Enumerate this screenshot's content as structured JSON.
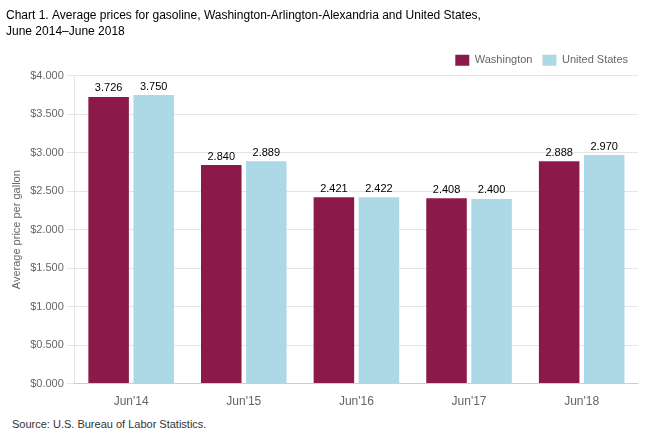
{
  "chart_data": {
    "type": "bar",
    "title": "Chart 1. Average prices for gasoline, Washington-Arlington-Alexandria and United States,",
    "subtitle": "June 2014–June 2018",
    "ylabel": "Average price per gallon",
    "annotations": [
      "Source: U.S. Bureau of Labor Statistics."
    ],
    "categories": [
      "Jun'14",
      "Jun'15",
      "Jun'16",
      "Jun'17",
      "Jun'18"
    ],
    "series": [
      {
        "name": "Washington",
        "color": "#8B1A4A",
        "values": [
          3.726,
          2.84,
          2.421,
          2.408,
          2.888
        ],
        "value_labels": [
          "3.726",
          "2.840",
          "2.421",
          "2.408",
          "2.888"
        ]
      },
      {
        "name": "United States",
        "color": "#ADD8E6",
        "values": [
          3.75,
          2.889,
          2.422,
          2.4,
          2.97
        ],
        "value_labels": [
          "3.750",
          "2.889",
          "2.422",
          "2.400",
          "2.970"
        ]
      }
    ],
    "ylim": [
      0,
      4.0
    ],
    "yticks": [
      {
        "value": 0.0,
        "label": "$0.000"
      },
      {
        "value": 0.5,
        "label": "$0.500"
      },
      {
        "value": 1.0,
        "label": "$1.000"
      },
      {
        "value": 1.5,
        "label": "$1.500"
      },
      {
        "value": 2.0,
        "label": "$2.000"
      },
      {
        "value": 2.5,
        "label": "$2.500"
      },
      {
        "value": 3.0,
        "label": "$3.000"
      },
      {
        "value": 3.5,
        "label": "$3.500"
      },
      {
        "value": 4.0,
        "label": "$4.000"
      }
    ],
    "grid": true,
    "legend": "upper right",
    "data_labels": true
  }
}
